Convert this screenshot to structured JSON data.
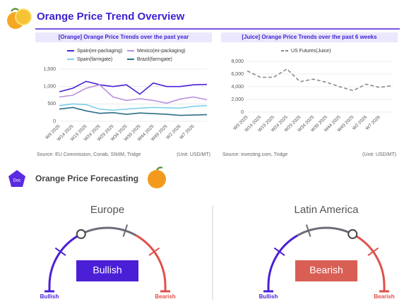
{
  "header": {
    "title": "Orange Price Trend Overview"
  },
  "chart_data": [
    {
      "type": "line",
      "title": "[Orange] Orange Price Trends over the past year",
      "categories": [
        "W9 2025",
        "W14 2025",
        "W19 2025",
        "W24 2025",
        "W29 2025",
        "W34 2025",
        "W39 2025",
        "W44 2025",
        "W49 2025",
        "W2 2026",
        "W7 2026",
        null
      ],
      "series": [
        {
          "name": "Spain(ex-packaging)",
          "color": "#4b1fd6",
          "values": [
            850,
            950,
            1150,
            1050,
            1000,
            1050,
            780,
            1100,
            1000,
            1000,
            1050,
            1060
          ]
        },
        {
          "name": "Mexico(ex-packaging)",
          "color": "#b88fe0",
          "values": [
            700,
            750,
            950,
            1050,
            700,
            600,
            650,
            600,
            520,
            640,
            700,
            620
          ]
        },
        {
          "name": "Spain(farmgate)",
          "color": "#7ecfe8",
          "values": [
            450,
            500,
            480,
            350,
            320,
            350,
            380,
            400,
            390,
            380,
            430,
            450
          ]
        },
        {
          "name": "Brazil(farmgate)",
          "color": "#2d6e87",
          "values": [
            350,
            400,
            300,
            230,
            250,
            200,
            240,
            220,
            200,
            170,
            180,
            190
          ]
        }
      ],
      "ylim": [
        0,
        1500
      ],
      "yticks": [
        0,
        500,
        {
          "value": 1000,
          "label": "1,000"
        },
        {
          "value": 1500,
          "label": "1,500"
        }
      ],
      "grid": true,
      "legend": "top",
      "source": "Source: EU Commission, Conab, SNIIM, Tridge",
      "unit": "(Unit: USD/MT)"
    },
    {
      "type": "line",
      "title": "[Juice] Orange Price Trends over the past 6 weeks",
      "categories": [
        "W9 2025",
        "W14 2025",
        "W19 2025",
        "W24 2025",
        "W29 2025",
        "W34 2025",
        "W39 2025",
        "W44 2025",
        "W49 2025",
        "W2 2026",
        "W7 2026",
        null
      ],
      "series": [
        {
          "name": "US Futures(Juice)",
          "color": "#8a8a8a",
          "dashed": true,
          "values": [
            6500,
            5500,
            5500,
            6800,
            4800,
            5200,
            4700,
            4000,
            3400,
            4400,
            3900,
            4200
          ]
        }
      ],
      "ylim": [
        0,
        8000
      ],
      "yticks": [
        0,
        {
          "value": 2000,
          "label": "2,000"
        },
        {
          "value": 4000,
          "label": "4,000"
        },
        {
          "value": 6000,
          "label": "6,000"
        },
        {
          "value": 8000,
          "label": "8,000"
        }
      ],
      "grid": true,
      "legend": "top",
      "source": "Source: investing.com, Tridge",
      "unit": "(Unit: USD/MT)"
    }
  ],
  "forecast": {
    "title": "Orange Price Forecasting",
    "icon": "Doc",
    "regions": [
      {
        "name": "Europe",
        "outlook": "Bullish",
        "left": "Bullish",
        "right": "Bearish"
      },
      {
        "name": "Latin America",
        "outlook": "Bearish",
        "left": "Bullish",
        "right": "Bearish"
      }
    ]
  }
}
